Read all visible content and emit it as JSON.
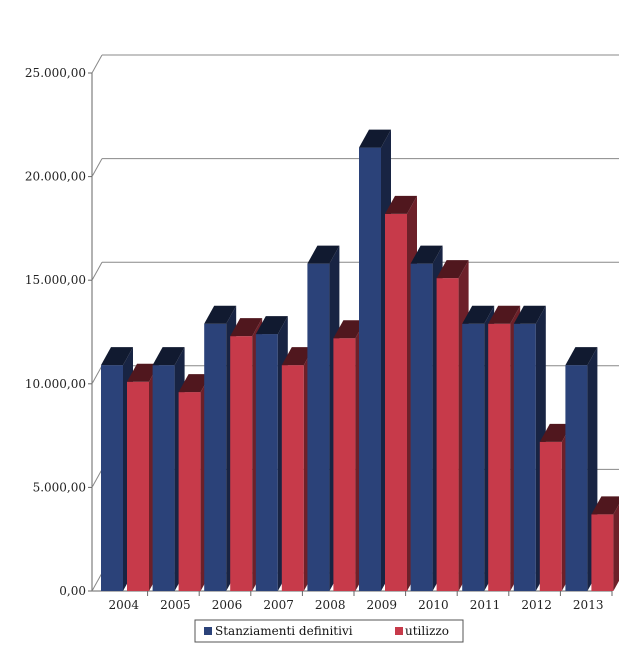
{
  "chart_data": {
    "type": "bar",
    "title": "",
    "xlabel": "",
    "ylabel": "",
    "categories": [
      "2004",
      "2005",
      "2006",
      "2007",
      "2008",
      "2009",
      "2010",
      "2011",
      "2012",
      "2013"
    ],
    "series": [
      {
        "name": "Stanziamenti definitivi",
        "color": "#2b4279",
        "values": [
          10900,
          10900,
          12900,
          12400,
          15800,
          21400,
          15800,
          12900,
          12900,
          10900
        ]
      },
      {
        "name": "utilizzo",
        "color": "#c73a4a",
        "values": [
          10100,
          9600,
          12300,
          10900,
          12200,
          18200,
          15100,
          12900,
          7200,
          3700
        ]
      }
    ],
    "ylim": [
      0,
      25000
    ],
    "yticks": [
      "0,00",
      "5.000,00",
      "10.000,00",
      "15.000,00",
      "20.000,00",
      "25.000,00"
    ],
    "grid": true,
    "legend_position": "bottom",
    "style": "3d-clustered-column"
  }
}
